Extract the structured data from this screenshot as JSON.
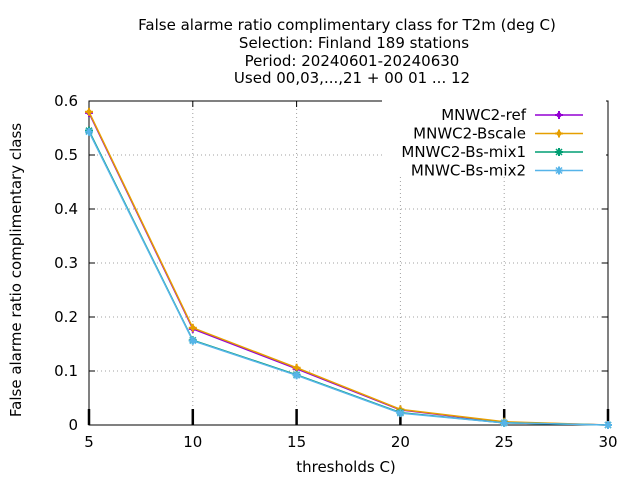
{
  "chart_data": {
    "type": "line",
    "title_lines": [
      "False alarme ratio complimentary class  for T2m (deg C)",
      "Selection: Finland    189 stations",
      "Period: 20240601-20240630",
      "Used 00,03,...,21 + 00 01 ... 12"
    ],
    "xlabel": "thresholds C)",
    "ylabel": "False alarme ratio complimentary class",
    "xlim": [
      5,
      30
    ],
    "ylim": [
      0,
      0.6
    ],
    "xticks": [
      5,
      10,
      15,
      20,
      25,
      30
    ],
    "yticks": [
      0,
      0.1,
      0.2,
      0.3,
      0.4,
      0.5,
      0.6
    ],
    "ytick_labels": [
      "0",
      "0.1",
      "0.2",
      "0.3",
      "0.4",
      "0.5",
      "0.6"
    ],
    "grid": true,
    "legend_position": "top-right",
    "x": [
      5,
      10,
      15,
      20,
      25,
      30
    ],
    "series": [
      {
        "name": "MNWC2-ref",
        "color": "#9400d3",
        "marker": "plus",
        "values": [
          0.578,
          0.178,
          0.104,
          0.028,
          0.005,
          0.0
        ]
      },
      {
        "name": "MNWC2-Bscale",
        "color": "#e69f00",
        "marker": "plus",
        "values": [
          0.58,
          0.18,
          0.106,
          0.029,
          0.006,
          0.0
        ]
      },
      {
        "name": "MNWC2-Bs-mix1",
        "color": "#009e73",
        "marker": "star",
        "values": [
          0.545,
          0.157,
          0.093,
          0.023,
          0.004,
          0.0
        ]
      },
      {
        "name": "MNWC-Bs-mix2",
        "color": "#56b4e9",
        "marker": "star",
        "values": [
          0.543,
          0.156,
          0.092,
          0.022,
          0.004,
          0.0
        ]
      }
    ]
  }
}
